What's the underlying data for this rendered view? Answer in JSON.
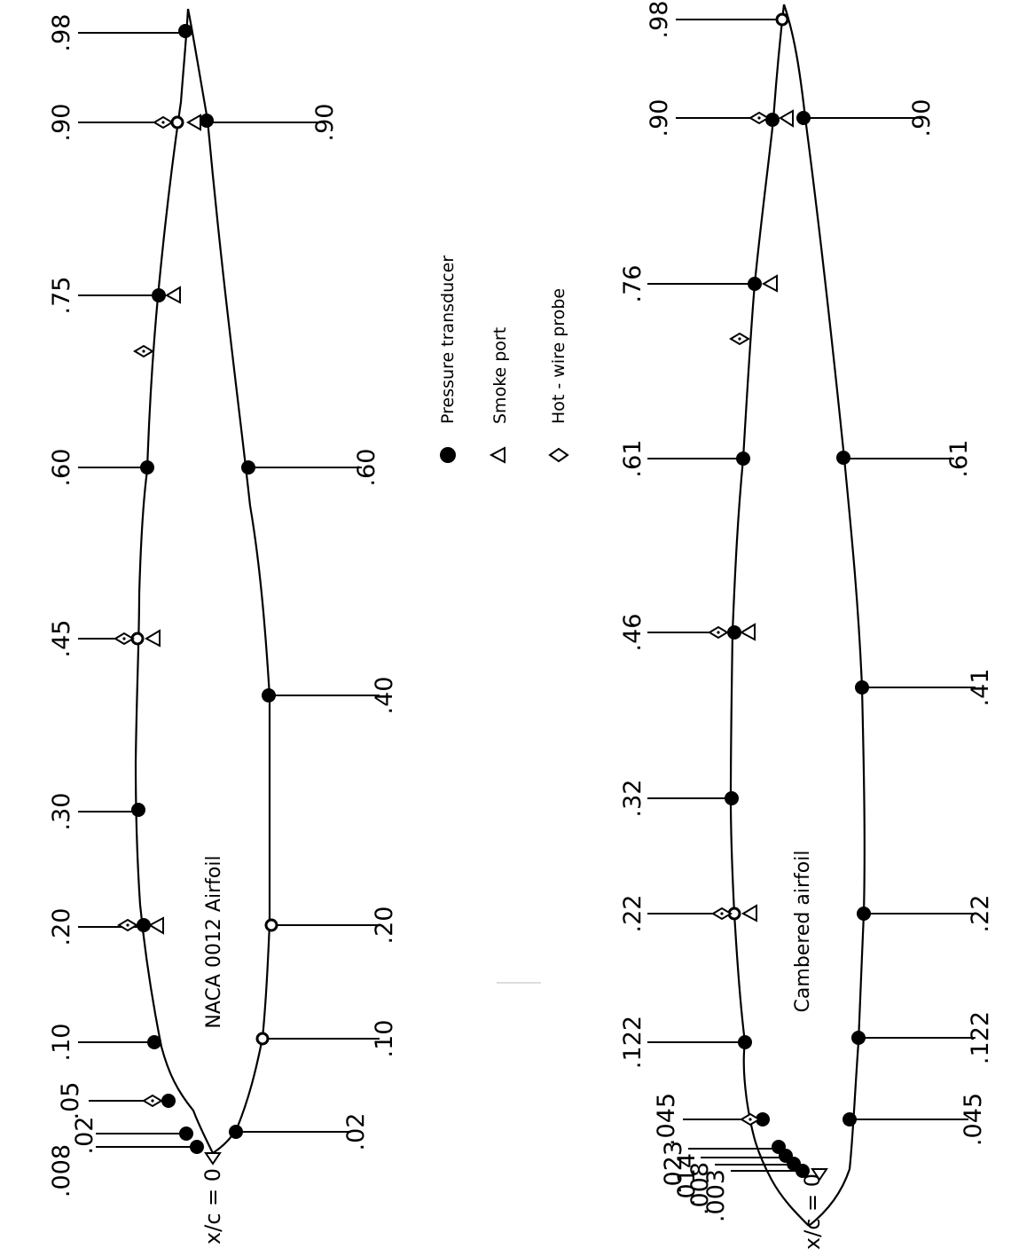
{
  "upper_airfoil": {
    "title": "NACA 0012 Airfoil",
    "leading_edge_label": "x/c = 0",
    "left_labels": {
      "l_98": ".98",
      "l_90": ".90",
      "l_75": ".75",
      "l_60": ".60",
      "l_45": ".45",
      "l_30": ".30",
      "l_20": ".20",
      "l_10": ".10",
      "l_05": ".05",
      "l_02": ".02",
      "l_008": ".008"
    },
    "right_labels": {
      "r_90": ".90",
      "r_60": ".60",
      "r_40": ".40",
      "r_20": ".20",
      "r_10": ".10",
      "r_02": ".02"
    }
  },
  "lower_airfoil": {
    "title": "Cambered airfoil",
    "leading_edge_label": "x/c = 0",
    "left_labels": {
      "l_98": ".98",
      "l_90": ".90",
      "l_76": ".76",
      "l_61": ".61",
      "l_46": ".46",
      "l_32": ".32",
      "l_22": ".22",
      "l_122": ".122",
      "l_045": ".045",
      "l_023": ".023",
      "l_014": ".014",
      "l_008": ".008",
      "l_003": ".003"
    },
    "right_labels": {
      "r_90": ".90",
      "r_61": ".61",
      "r_41": ".41",
      "r_22": ".22",
      "r_122": ".122",
      "r_045": ".045"
    }
  },
  "legend": {
    "pressure_transducer": "Pressure transducer",
    "smoke_port": "Smoke port",
    "hot_wire_probe": "Hot - wire probe"
  },
  "colors": {
    "ink": "#000000",
    "background": "#ffffff"
  },
  "icons": {
    "pressure_transducer": "filled-circle-icon",
    "smoke_port": "triangle-icon",
    "hot_wire_probe": "diamond-icon"
  }
}
